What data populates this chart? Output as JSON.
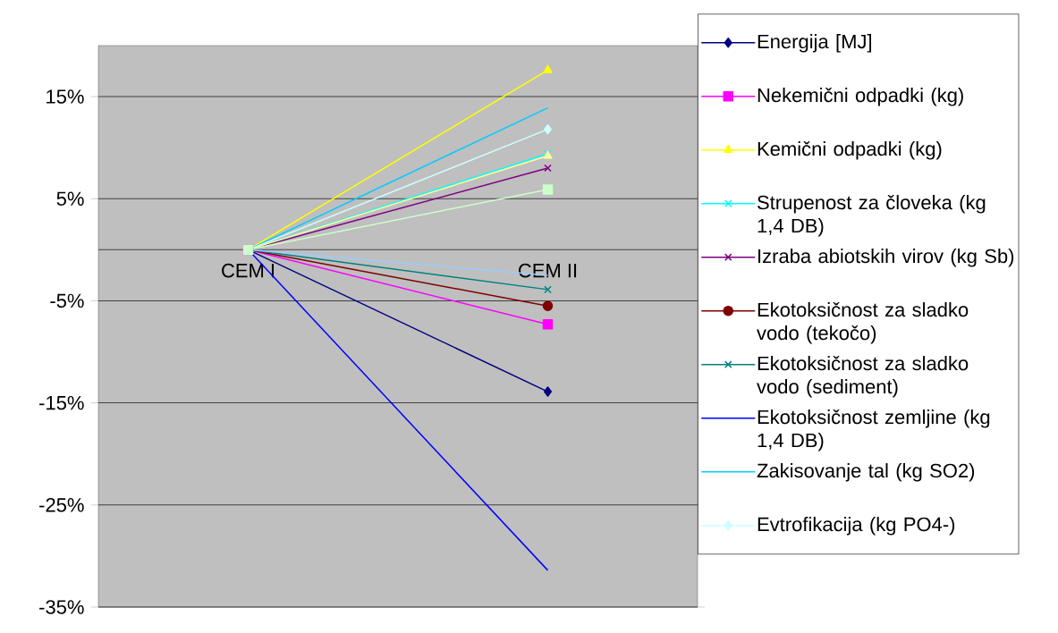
{
  "chart_data": {
    "type": "line",
    "categories": [
      "CEM I",
      "CEM II"
    ],
    "ylim": [
      -35,
      20
    ],
    "yticks": [
      {
        "value": 15,
        "label": "15%"
      },
      {
        "value": 5,
        "label": "5%"
      },
      {
        "value": -5,
        "label": "-5%"
      },
      {
        "value": -15,
        "label": "-15%"
      },
      {
        "value": -25,
        "label": "-25%"
      },
      {
        "value": -35,
        "label": "-35%"
      }
    ],
    "grid": "y",
    "legend": "right",
    "series": [
      {
        "name": "Energija [MJ]",
        "color": "#000080",
        "marker": "diamond",
        "values": [
          0,
          -13.9
        ]
      },
      {
        "name": "Nekemični odpadki (kg)",
        "color": "#ff00ff",
        "marker": "square",
        "values": [
          0,
          -7.3
        ]
      },
      {
        "name": "Kemični odpadki (kg)",
        "color": "#ffff00",
        "marker": "triangle",
        "values": [
          0,
          17.6
        ]
      },
      {
        "name": "Strupenost za človeka (kg 1,4 DB)",
        "color": "#00ffff",
        "marker": "cross",
        "values": [
          0,
          9.4
        ]
      },
      {
        "name": "Izraba abiotskih virov (kg Sb)",
        "color": "#800080",
        "marker": "cross",
        "values": [
          0,
          8.0
        ]
      },
      {
        "name": "Ekotoksičnost za sladko vodo (tekočo)",
        "color": "#800000",
        "marker": "circle",
        "values": [
          0,
          -5.5
        ]
      },
      {
        "name": "Ekotoksičnost za sladko vodo (sediment)",
        "color": "#008080",
        "marker": "cross",
        "values": [
          0,
          -3.9
        ]
      },
      {
        "name": "Ekotoksičnost zemljine (kg 1,4 DB)",
        "color": "#0000ff",
        "marker": "none",
        "values": [
          0,
          -31.4
        ]
      },
      {
        "name": "Zakisovanje tal (kg SO2)",
        "color": "#00ccff",
        "marker": "none",
        "values": [
          0,
          13.9
        ]
      },
      {
        "name": "Evtrofikacija (kg PO4-)",
        "color": "#ccffff",
        "marker": "diamond",
        "values": [
          0,
          11.8
        ]
      },
      {
        "color": "#ffff99",
        "marker": "triangle",
        "values": [
          0,
          9.2
        ]
      },
      {
        "color": "#ccffcc",
        "marker": "square",
        "values": [
          0,
          5.9
        ]
      },
      {
        "color": "#99ccff",
        "marker": "none",
        "values": [
          0,
          -2.5
        ]
      }
    ]
  }
}
